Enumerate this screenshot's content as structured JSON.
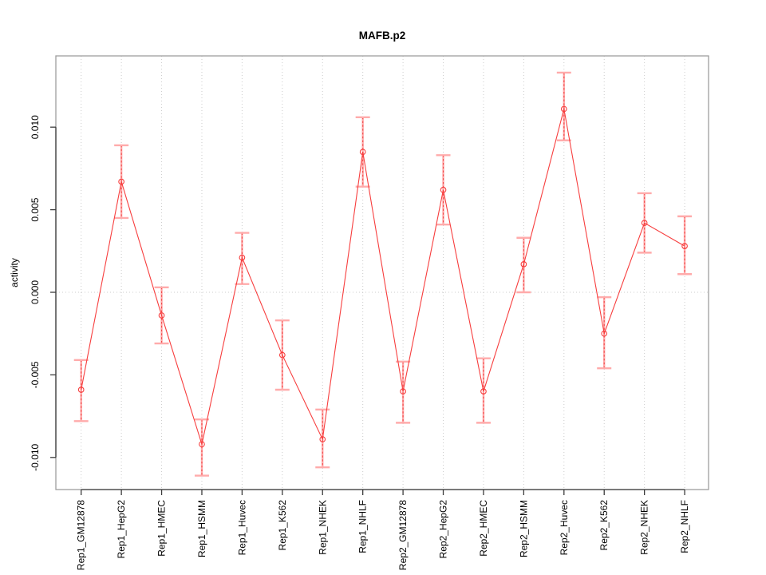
{
  "chart_data": {
    "type": "line",
    "title": "MAFB.p2",
    "xlabel": "",
    "ylabel": "activity",
    "legend": "none",
    "grid": "dotted vertical line at each category; dotted horizontal line at y=0",
    "categories": [
      "Rep1_GM12878",
      "Rep1_HepG2",
      "Rep1_HMEC",
      "Rep1_HSMM",
      "Rep1_Huvec",
      "Rep1_K562",
      "Rep1_NHEK",
      "Rep1_NHLF",
      "Rep2_GM12878",
      "Rep2_HepG2",
      "Rep2_HMEC",
      "Rep2_HSMM",
      "Rep2_Huvec",
      "Rep2_K562",
      "Rep2_NHEK",
      "Rep2_NHLF"
    ],
    "series": [
      {
        "name": "activity",
        "values": [
          -0.0059,
          0.0067,
          -0.0014,
          -0.0092,
          0.0021,
          -0.0038,
          -0.0089,
          0.0085,
          -0.006,
          0.0062,
          -0.006,
          0.0017,
          0.0111,
          -0.0025,
          0.0042,
          0.0028
        ],
        "err_low": [
          -0.0078,
          0.0045,
          -0.0031,
          -0.0111,
          0.0005,
          -0.0059,
          -0.0106,
          0.0064,
          -0.0079,
          0.0041,
          -0.0079,
          0.0,
          0.0092,
          -0.0046,
          0.0024,
          0.0011
        ],
        "err_high": [
          -0.0041,
          0.0089,
          0.0003,
          -0.0077,
          0.0036,
          -0.0017,
          -0.0071,
          0.0106,
          -0.0042,
          0.0083,
          -0.004,
          0.0033,
          0.0133,
          -0.0003,
          0.006,
          0.0046
        ]
      }
    ],
    "yticks": [
      -0.01,
      -0.005,
      0.0,
      0.005,
      0.01
    ],
    "ytick_labels": [
      "-0.010",
      "-0.005",
      "0.000",
      "0.005",
      "0.010"
    ],
    "ylim": [
      -0.0119,
      0.0143
    ],
    "colors": {
      "line": "#f73e3e",
      "point": "#f73e3e",
      "error_bar_solid": "#ffabab",
      "error_bar_dash": "#f14a4a",
      "grid": "#cccccc",
      "axis": "#3c3c3c",
      "box": "#9e9e9e",
      "text": "#000000",
      "background": "#ffffff"
    }
  }
}
